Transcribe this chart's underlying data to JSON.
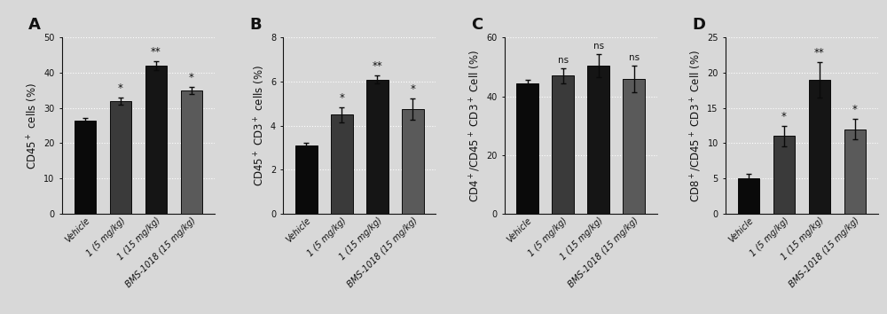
{
  "panels": [
    {
      "label": "A",
      "ylabel": "CD45$^+$ cells (%)",
      "ylim": [
        0,
        50
      ],
      "yticks": [
        0,
        10,
        20,
        30,
        40,
        50
      ],
      "values": [
        26.5,
        32.0,
        42.0,
        35.0
      ],
      "errors": [
        0.7,
        1.0,
        1.2,
        1.0
      ],
      "significance": [
        "",
        "*",
        "**",
        "*"
      ]
    },
    {
      "label": "B",
      "ylabel": "CD45$^+$ CD3$^+$ cells (%)",
      "ylim": [
        0,
        8
      ],
      "yticks": [
        0,
        2,
        4,
        6,
        8
      ],
      "values": [
        3.1,
        4.5,
        6.1,
        4.75
      ],
      "errors": [
        0.12,
        0.35,
        0.18,
        0.48
      ],
      "significance": [
        "",
        "*",
        "**",
        "*"
      ]
    },
    {
      "label": "C",
      "ylabel": "CD4$^+$/CD45$^+$ CD3$^+$ Cell (%)",
      "ylim": [
        0,
        60
      ],
      "yticks": [
        0,
        20,
        40,
        60
      ],
      "values": [
        44.5,
        47.0,
        50.5,
        46.0
      ],
      "errors": [
        1.2,
        2.5,
        4.0,
        4.5
      ],
      "significance": [
        "",
        "ns",
        "ns",
        "ns"
      ]
    },
    {
      "label": "D",
      "ylabel": "CD8$^+$/CD45$^+$ CD3$^+$ Cell (%)",
      "ylim": [
        0,
        25
      ],
      "yticks": [
        0,
        5,
        10,
        15,
        20,
        25
      ],
      "values": [
        5.0,
        11.0,
        19.0,
        12.0
      ],
      "errors": [
        0.7,
        1.5,
        2.5,
        1.5
      ],
      "significance": [
        "",
        "*",
        "**",
        "*"
      ]
    }
  ],
  "categories": [
    "Vehicle",
    "1 (5 mg/kg)",
    "1 (15 mg/kg)",
    "BMS-1018 (15 mg/kg)"
  ],
  "bar_colors": [
    "#0a0a0a",
    "#3a3a3a",
    "#151515",
    "#5a5a5a"
  ],
  "bar_edgecolor": "#0a0a0a",
  "error_color": "#0a0a0a",
  "background_color": "#d8d8d8",
  "plot_bg_color": "#d8d8d8",
  "grid_color": "#ffffff",
  "label_fontsize": 8.5,
  "tick_fontsize": 7.0,
  "sig_fontsize": 8.5,
  "ns_fontsize": 7.5,
  "panel_label_fontsize": 13
}
